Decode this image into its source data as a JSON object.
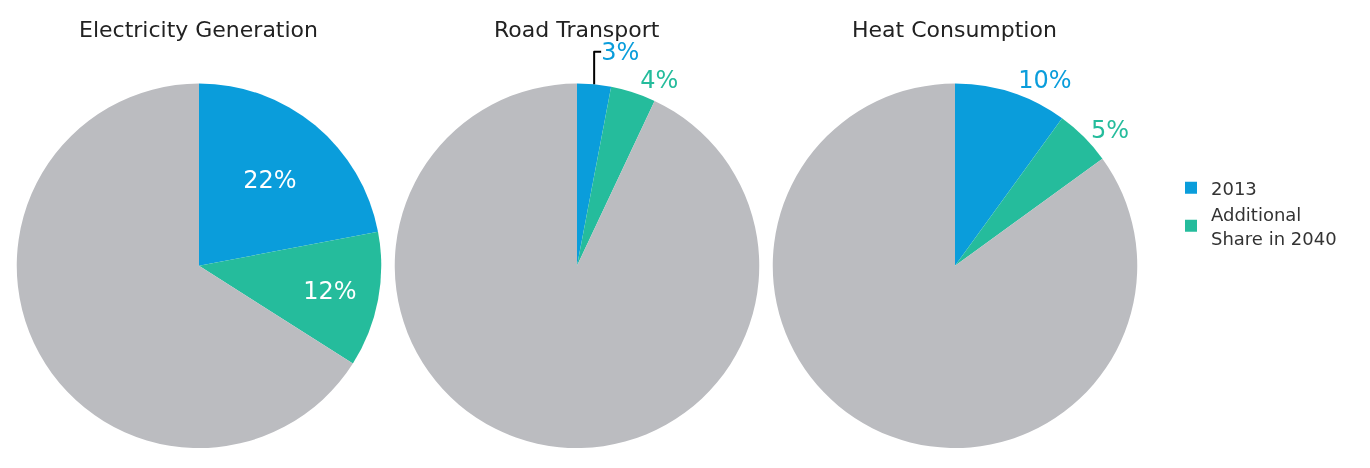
{
  "chart_data": [
    {
      "type": "pie",
      "title": "Electricity Generation",
      "categories": [
        "2013",
        "Additional Share in 2040",
        null
      ],
      "values": [
        22,
        12,
        66
      ],
      "colors": [
        "#0a9ddb",
        "#25bc9c",
        "#bbbcc0"
      ],
      "value_labels": [
        "22%",
        "12%",
        null
      ],
      "legend": "right"
    },
    {
      "type": "pie",
      "title": "Road Transport",
      "categories": [
        null,
        null,
        null
      ],
      "values": [
        3,
        4,
        93
      ],
      "colors": [
        "#0a9ddb",
        "#25bc9c",
        "#bbbcc0"
      ],
      "value_labels": [
        "3%",
        "4%",
        null
      ]
    },
    {
      "type": "pie",
      "title": "Heat Consumption",
      "categories": [
        null,
        null,
        null
      ],
      "values": [
        10,
        5,
        85
      ],
      "colors": [
        "#0a9ddb",
        "#25bc9c",
        "#bbbcc0"
      ],
      "value_labels": [
        "10%",
        "5%",
        null
      ]
    }
  ]
}
